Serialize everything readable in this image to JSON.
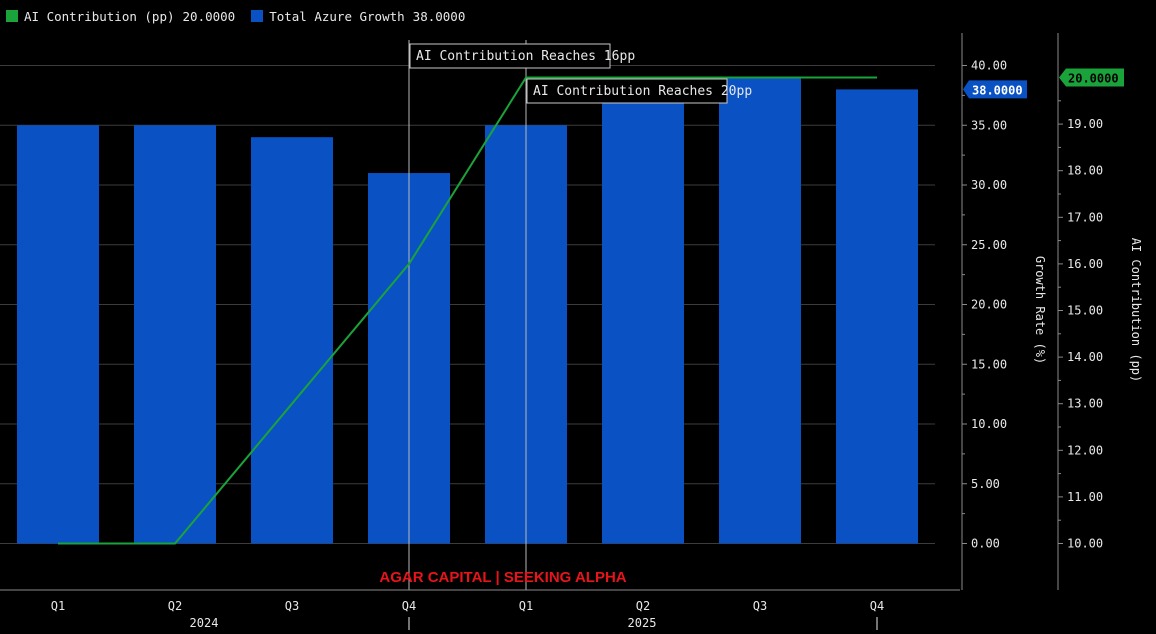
{
  "legend": [
    {
      "label": "AI Contribution (pp)",
      "value": "20.0000",
      "color": "#1aa33a"
    },
    {
      "label": "Total Azure Growth",
      "value": "38.0000",
      "color": "#0a52c4"
    }
  ],
  "watermark": "AGAR CAPITAL | SEEKING ALPHA",
  "chart_data": {
    "type": "bar",
    "categories": [
      "Q1",
      "Q2",
      "Q3",
      "Q4",
      "Q1",
      "Q2",
      "Q3",
      "Q4"
    ],
    "year_labels": [
      "2024",
      "2025"
    ],
    "series": [
      {
        "name": "Total Azure Growth",
        "type": "bar",
        "axis": "left",
        "values": [
          35,
          35,
          34,
          31,
          35,
          37,
          39,
          38
        ],
        "color": "#0a52c4"
      },
      {
        "name": "AI Contribution (pp)",
        "type": "line",
        "axis": "right",
        "values": [
          10,
          10,
          13,
          16,
          20,
          20,
          20,
          20
        ],
        "color": "#1aa33a"
      }
    ],
    "left_axis": {
      "label": "Growth Rate (%)",
      "range": [
        -4,
        42
      ],
      "ticks": [
        0,
        5,
        10,
        15,
        20,
        25,
        30,
        35,
        40
      ],
      "tick_labels": [
        "0.00",
        "5.00",
        "10.00",
        "15.00",
        "20.00",
        "25.00",
        "30.00",
        "35.00",
        "40.00"
      ]
    },
    "right_axis": {
      "label": "AI Contribution (pp)",
      "range": [
        9.2,
        20.9
      ],
      "ticks": [
        10,
        11,
        12,
        13,
        14,
        15,
        16,
        17,
        18,
        19
      ],
      "tick_labels": [
        "10.00",
        "11.00",
        "12.00",
        "13.00",
        "14.00",
        "15.00",
        "16.00",
        "17.00",
        "18.00",
        "19.00"
      ]
    },
    "last_value_tags": {
      "left": "38.0000",
      "right": "20.0000"
    },
    "annotations": [
      {
        "text": "AI Contribution Reaches 16pp",
        "category_index": 3
      },
      {
        "text": "AI Contribution Reaches 20pp",
        "category_index": 4
      }
    ],
    "grid": true,
    "legend_position": "top-left"
  }
}
